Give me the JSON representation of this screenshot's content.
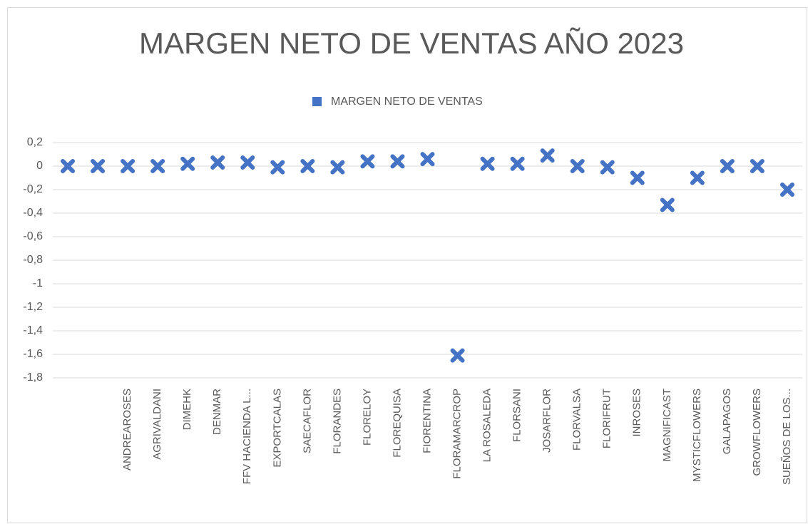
{
  "chart_data": {
    "type": "scatter",
    "title": "MARGEN NETO DE VENTAS AÑO 2023",
    "categories": [
      null,
      null,
      "ANDREAROSES",
      "AGRIVALDANI",
      "DIMEHK",
      "DENMAR",
      "FFV HACIENDA L...",
      "EXPORTCALAS",
      "SAECAFLOR",
      "FLORANDES",
      "FLORELOY",
      "FLOREQUISA",
      "FIORENTINA",
      "FLORAMARCROP",
      "LA ROSALEDA",
      "FLORSANI",
      "JOSARFLOR",
      "FLORVALSA",
      "FLORIFRUT",
      "INROSES",
      "MAGNIFICAST",
      "MYSTICFLOWERS",
      "GALAPAGOS",
      "GROWFLOWERS",
      "SUEÑOS DE LOS..."
    ],
    "series": [
      {
        "name": "MARGEN NETO DE VENTAS",
        "color": "#4472c4",
        "values": [
          0,
          0,
          0,
          0,
          0.02,
          0.03,
          0.03,
          -0.01,
          0,
          -0.01,
          0.04,
          0.04,
          0.06,
          -1.61,
          0.02,
          0.02,
          0.09,
          0,
          -0.01,
          -0.1,
          -0.33,
          -0.1,
          0,
          0,
          -0.2
        ]
      }
    ],
    "ylim": [
      -1.8,
      0.2
    ],
    "yticks": [
      {
        "value": 0.2,
        "label": "0,2"
      },
      0,
      {
        "value": -0.2,
        "label": "-0,2"
      },
      {
        "value": -0.4,
        "label": "-0,4"
      },
      {
        "value": -0.6,
        "label": "-0,6"
      },
      {
        "value": -0.8,
        "label": "-0,8"
      },
      -1,
      {
        "value": -1.2,
        "label": "-1,2"
      },
      {
        "value": -1.4,
        "label": "-1,4"
      },
      {
        "value": -1.6,
        "label": "-1,6"
      },
      {
        "value": -1.8,
        "label": "-1,8"
      }
    ],
    "grid": true,
    "legend": "top"
  }
}
